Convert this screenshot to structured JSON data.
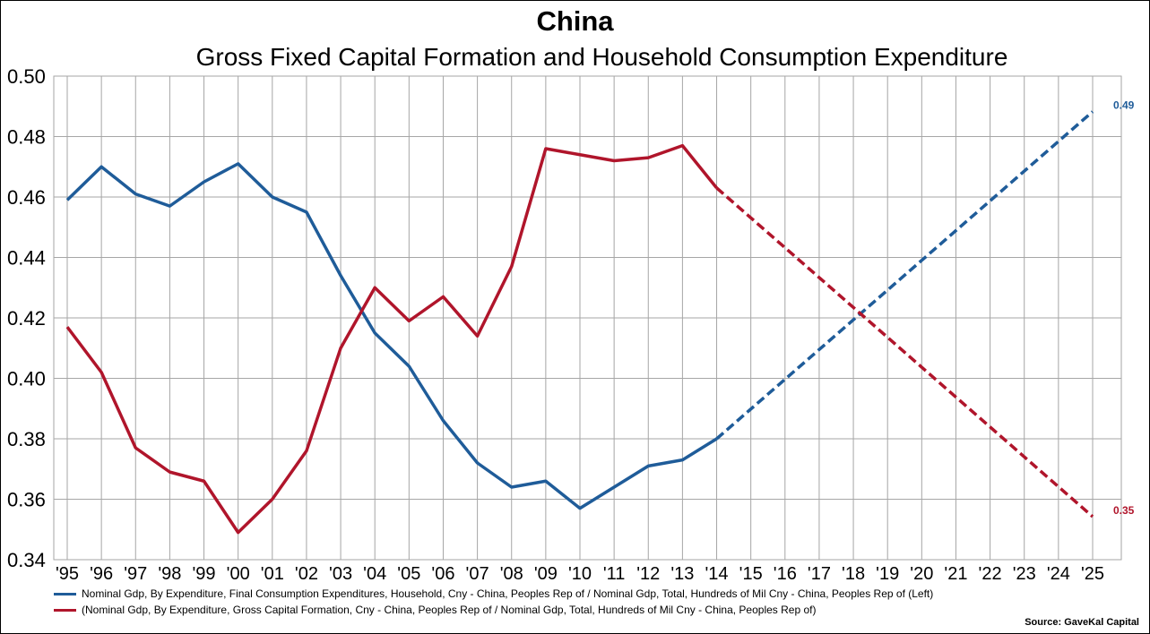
{
  "title": "China",
  "subtitle": "Gross Fixed Capital Formation and Household Consumption Expenditure",
  "source": "Source: GaveKal Capital",
  "colors": {
    "blue": "#1F5C99",
    "red": "#B0152B",
    "grid": "#a6a6a6"
  },
  "chart_data": {
    "type": "line",
    "x": [
      "'95",
      "'96",
      "'97",
      "'98",
      "'99",
      "'00",
      "'01",
      "'02",
      "'03",
      "'04",
      "'05",
      "'06",
      "'07",
      "'08",
      "'09",
      "'10",
      "'11",
      "'12",
      "'13",
      "'14",
      "'15",
      "'16",
      "'17",
      "'18",
      "'19",
      "'20",
      "'21",
      "'22",
      "'23",
      "'24",
      "'25"
    ],
    "ylim": [
      0.34,
      0.5
    ],
    "yticks": [
      "0.34",
      "0.36",
      "0.38",
      "0.40",
      "0.42",
      "0.44",
      "0.46",
      "0.48",
      "0.50"
    ],
    "grid": true,
    "legend_position": "bottom",
    "series": [
      {
        "name": "Nominal Gdp, By Expenditure, Final Consumption Expenditures, Household, Cny - China, Peoples Rep of / Nominal Gdp, Total, Hundreds of Mil Cny - China, Peoples Rep of   (Left)",
        "color": "#1F5C99",
        "actual": [
          0.459,
          0.47,
          0.461,
          0.457,
          0.465,
          0.471,
          0.46,
          0.455,
          0.434,
          0.415,
          0.404,
          0.386,
          0.372,
          0.364,
          0.366,
          0.357,
          0.364,
          0.371,
          0.373,
          0.38
        ],
        "projection": [
          0.38,
          0.48825
        ],
        "projection_x": [
          "'14",
          "'25"
        ],
        "end_label": "0.49"
      },
      {
        "name": "(Nominal Gdp, By Expenditure, Gross Capital Formation, Cny - China, Peoples Rep of / Nominal Gdp, Total, Hundreds of Mil Cny - China, Peoples Rep of)",
        "color": "#B0152B",
        "actual": [
          0.417,
          0.402,
          0.377,
          0.369,
          0.366,
          0.349,
          0.36,
          0.376,
          0.41,
          0.43,
          0.419,
          0.427,
          0.414,
          0.437,
          0.476,
          0.474,
          0.472,
          0.473,
          0.477,
          0.463
        ],
        "projection": [
          0.463,
          0.35425
        ],
        "projection_x": [
          "'14",
          "'25"
        ],
        "end_label": "0.35"
      }
    ]
  }
}
